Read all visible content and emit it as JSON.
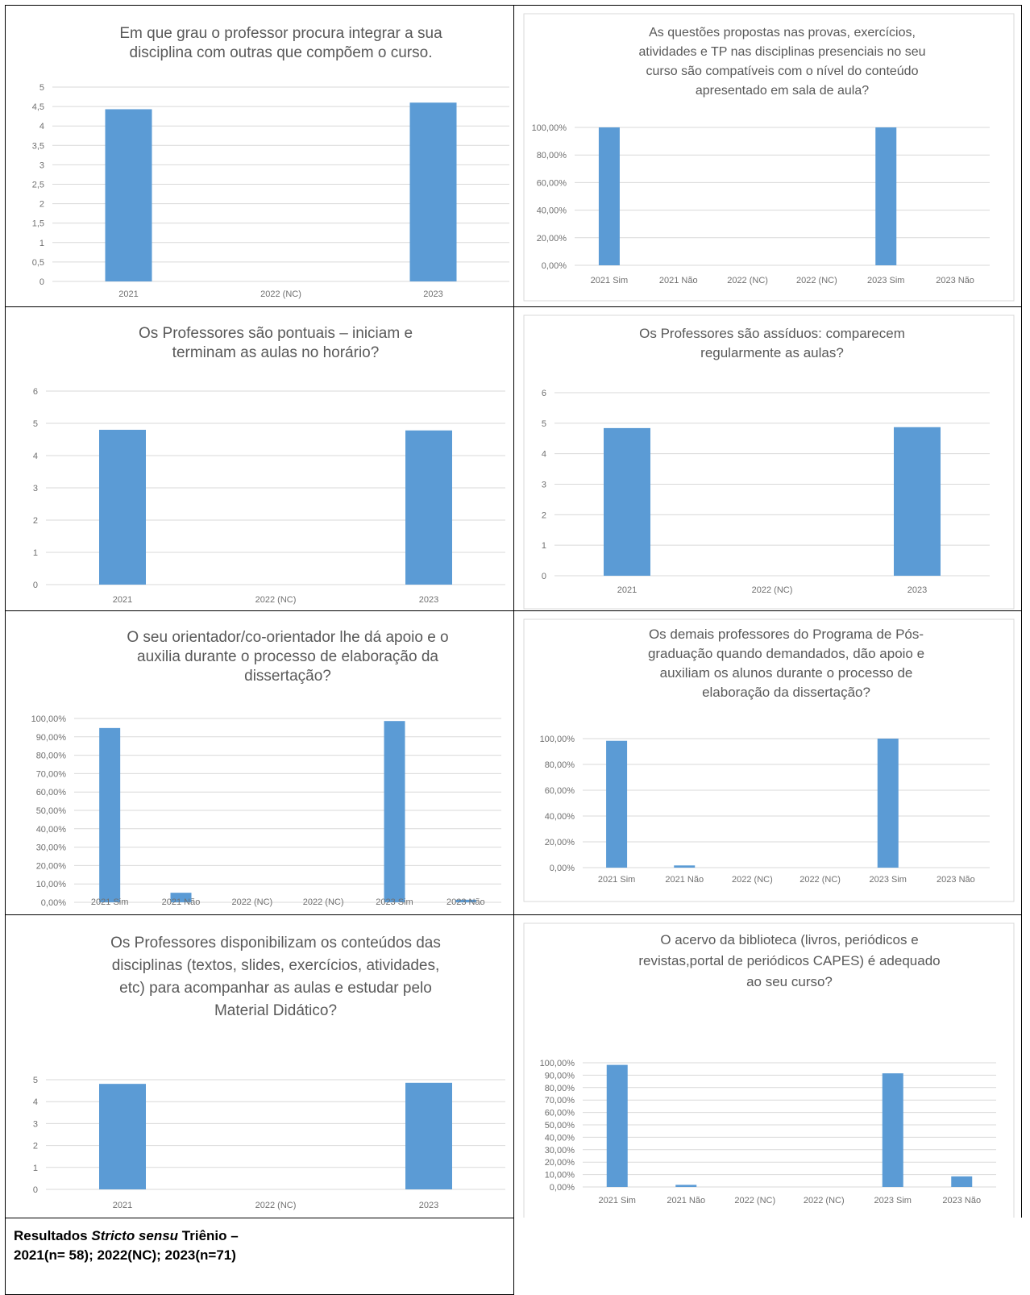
{
  "chart_data": [
    {
      "type": "bar",
      "title_lines": [
        "Em que grau o professor procura integrar a sua",
        "disciplina com outras que compõem o curso."
      ],
      "categories": [
        "2021",
        "2022 (NC)",
        "2023"
      ],
      "values": [
        4.43,
        0,
        4.6
      ],
      "ylim": [
        0,
        5
      ],
      "yticks": [
        "0",
        "0,5",
        "1",
        "1,5",
        "2",
        "2,5",
        "3",
        "3,5",
        "4",
        "4,5",
        "5"
      ],
      "grid": true
    },
    {
      "type": "bar",
      "title_lines": [
        "As questões propostas nas provas, exercícios,",
        "atividades e TP nas disciplinas presenciais no seu",
        "curso são compatíveis com o nível do conteúdo",
        "apresentado em sala de aula?"
      ],
      "categories": [
        "2021 Sim",
        "2021 Não",
        "2022 (NC)",
        "2022 (NC)",
        "2023 Sim",
        "2023 Não"
      ],
      "values": [
        100,
        0,
        0,
        0,
        100,
        0
      ],
      "ylim": [
        0,
        100
      ],
      "yticks": [
        "0,00%",
        "20,00%",
        "40,00%",
        "60,00%",
        "80,00%",
        "100,00%"
      ],
      "grid": true
    },
    {
      "type": "bar",
      "title_lines": [
        "Os Professores são pontuais – iniciam e",
        "terminam as aulas no horário?"
      ],
      "categories": [
        "2021",
        "2022 (NC)",
        "2023"
      ],
      "values": [
        4.8,
        0,
        4.78
      ],
      "ylim": [
        0,
        6
      ],
      "yticks": [
        "0",
        "1",
        "2",
        "3",
        "4",
        "5",
        "6"
      ],
      "grid": true
    },
    {
      "type": "bar",
      "title_lines": [
        "Os Professores são assíduos: comparecem",
        "regularmente as aulas?"
      ],
      "categories": [
        "2021",
        "2022 (NC)",
        "2023"
      ],
      "values": [
        4.84,
        0,
        4.87
      ],
      "ylim": [
        0,
        6
      ],
      "yticks": [
        "0",
        "1",
        "2",
        "3",
        "4",
        "5",
        "6"
      ],
      "grid": true
    },
    {
      "type": "bar",
      "title_lines": [
        "O seu orientador/co-orientador lhe dá apoio e o",
        "auxilia durante o processo de elaboração da",
        "dissertação?"
      ],
      "categories": [
        "2021 Sim",
        "2021 Não",
        "2022 (NC)",
        "2022 (NC)",
        "2023 Sim",
        "2023 Não"
      ],
      "values": [
        94.8,
        5.2,
        0,
        0,
        98.6,
        1.4
      ],
      "ylim": [
        0,
        100
      ],
      "yticks": [
        "0,00%",
        "10,00%",
        "20,00%",
        "30,00%",
        "40,00%",
        "50,00%",
        "60,00%",
        "70,00%",
        "80,00%",
        "90,00%",
        "100,00%"
      ],
      "grid": true
    },
    {
      "type": "bar",
      "title_lines": [
        "Os demais professores do Programa de Pós-",
        "graduação quando demandados, dão apoio e",
        "auxiliam os alunos durante o processo de",
        "elaboração da dissertação?"
      ],
      "categories": [
        "2021 Sim",
        "2021 Não",
        "2022 (NC)",
        "2022 (NC)",
        "2023 Sim",
        "2023 Não"
      ],
      "values": [
        98.3,
        1.7,
        0,
        0,
        100,
        0
      ],
      "ylim": [
        0,
        100
      ],
      "yticks": [
        "0,00%",
        "20,00%",
        "40,00%",
        "60,00%",
        "80,00%",
        "100,00%"
      ],
      "grid": true
    },
    {
      "type": "bar",
      "title_lines": [
        "Os Professores disponibilizam os conteúdos das",
        "disciplinas (textos, slides, exercícios, atividades,",
        "etc) para acompanhar as aulas e estudar pelo",
        "Material Didático?"
      ],
      "categories": [
        "2021",
        "2022 (NC)",
        "2023"
      ],
      "values": [
        4.81,
        0,
        4.86
      ],
      "ylim": [
        0,
        5
      ],
      "yticks": [
        "0",
        "1",
        "2",
        "3",
        "4",
        "5"
      ],
      "grid": true
    },
    {
      "type": "bar",
      "title_lines": [
        "O acervo da biblioteca (livros, periódicos e",
        "revistas,portal de periódicos CAPES) é adequado",
        "ao seu curso?"
      ],
      "categories": [
        "2021 Sim",
        "2021 Não",
        "2022 (NC)",
        "2022 (NC)",
        "2023 Sim",
        "2023 Não"
      ],
      "values": [
        98.3,
        1.7,
        0,
        0,
        91.5,
        8.5
      ],
      "ylim": [
        0,
        100
      ],
      "yticks": [
        "0,00%",
        "10,00%",
        "20,00%",
        "30,00%",
        "40,00%",
        "50,00%",
        "60,00%",
        "70,00%",
        "80,00%",
        "90,00%",
        "100,00%"
      ],
      "grid": true
    }
  ],
  "caption": {
    "prefix": "Resultados ",
    "italic": "Stricto sensu",
    "suffix": " Triênio –",
    "line2": "2021(n= 58); 2022(NC); 2023(n=71)"
  },
  "colors": {
    "bar": "#5b9bd5",
    "grid": "#d9d9d9",
    "title": "#595959",
    "tick": "#707070"
  }
}
